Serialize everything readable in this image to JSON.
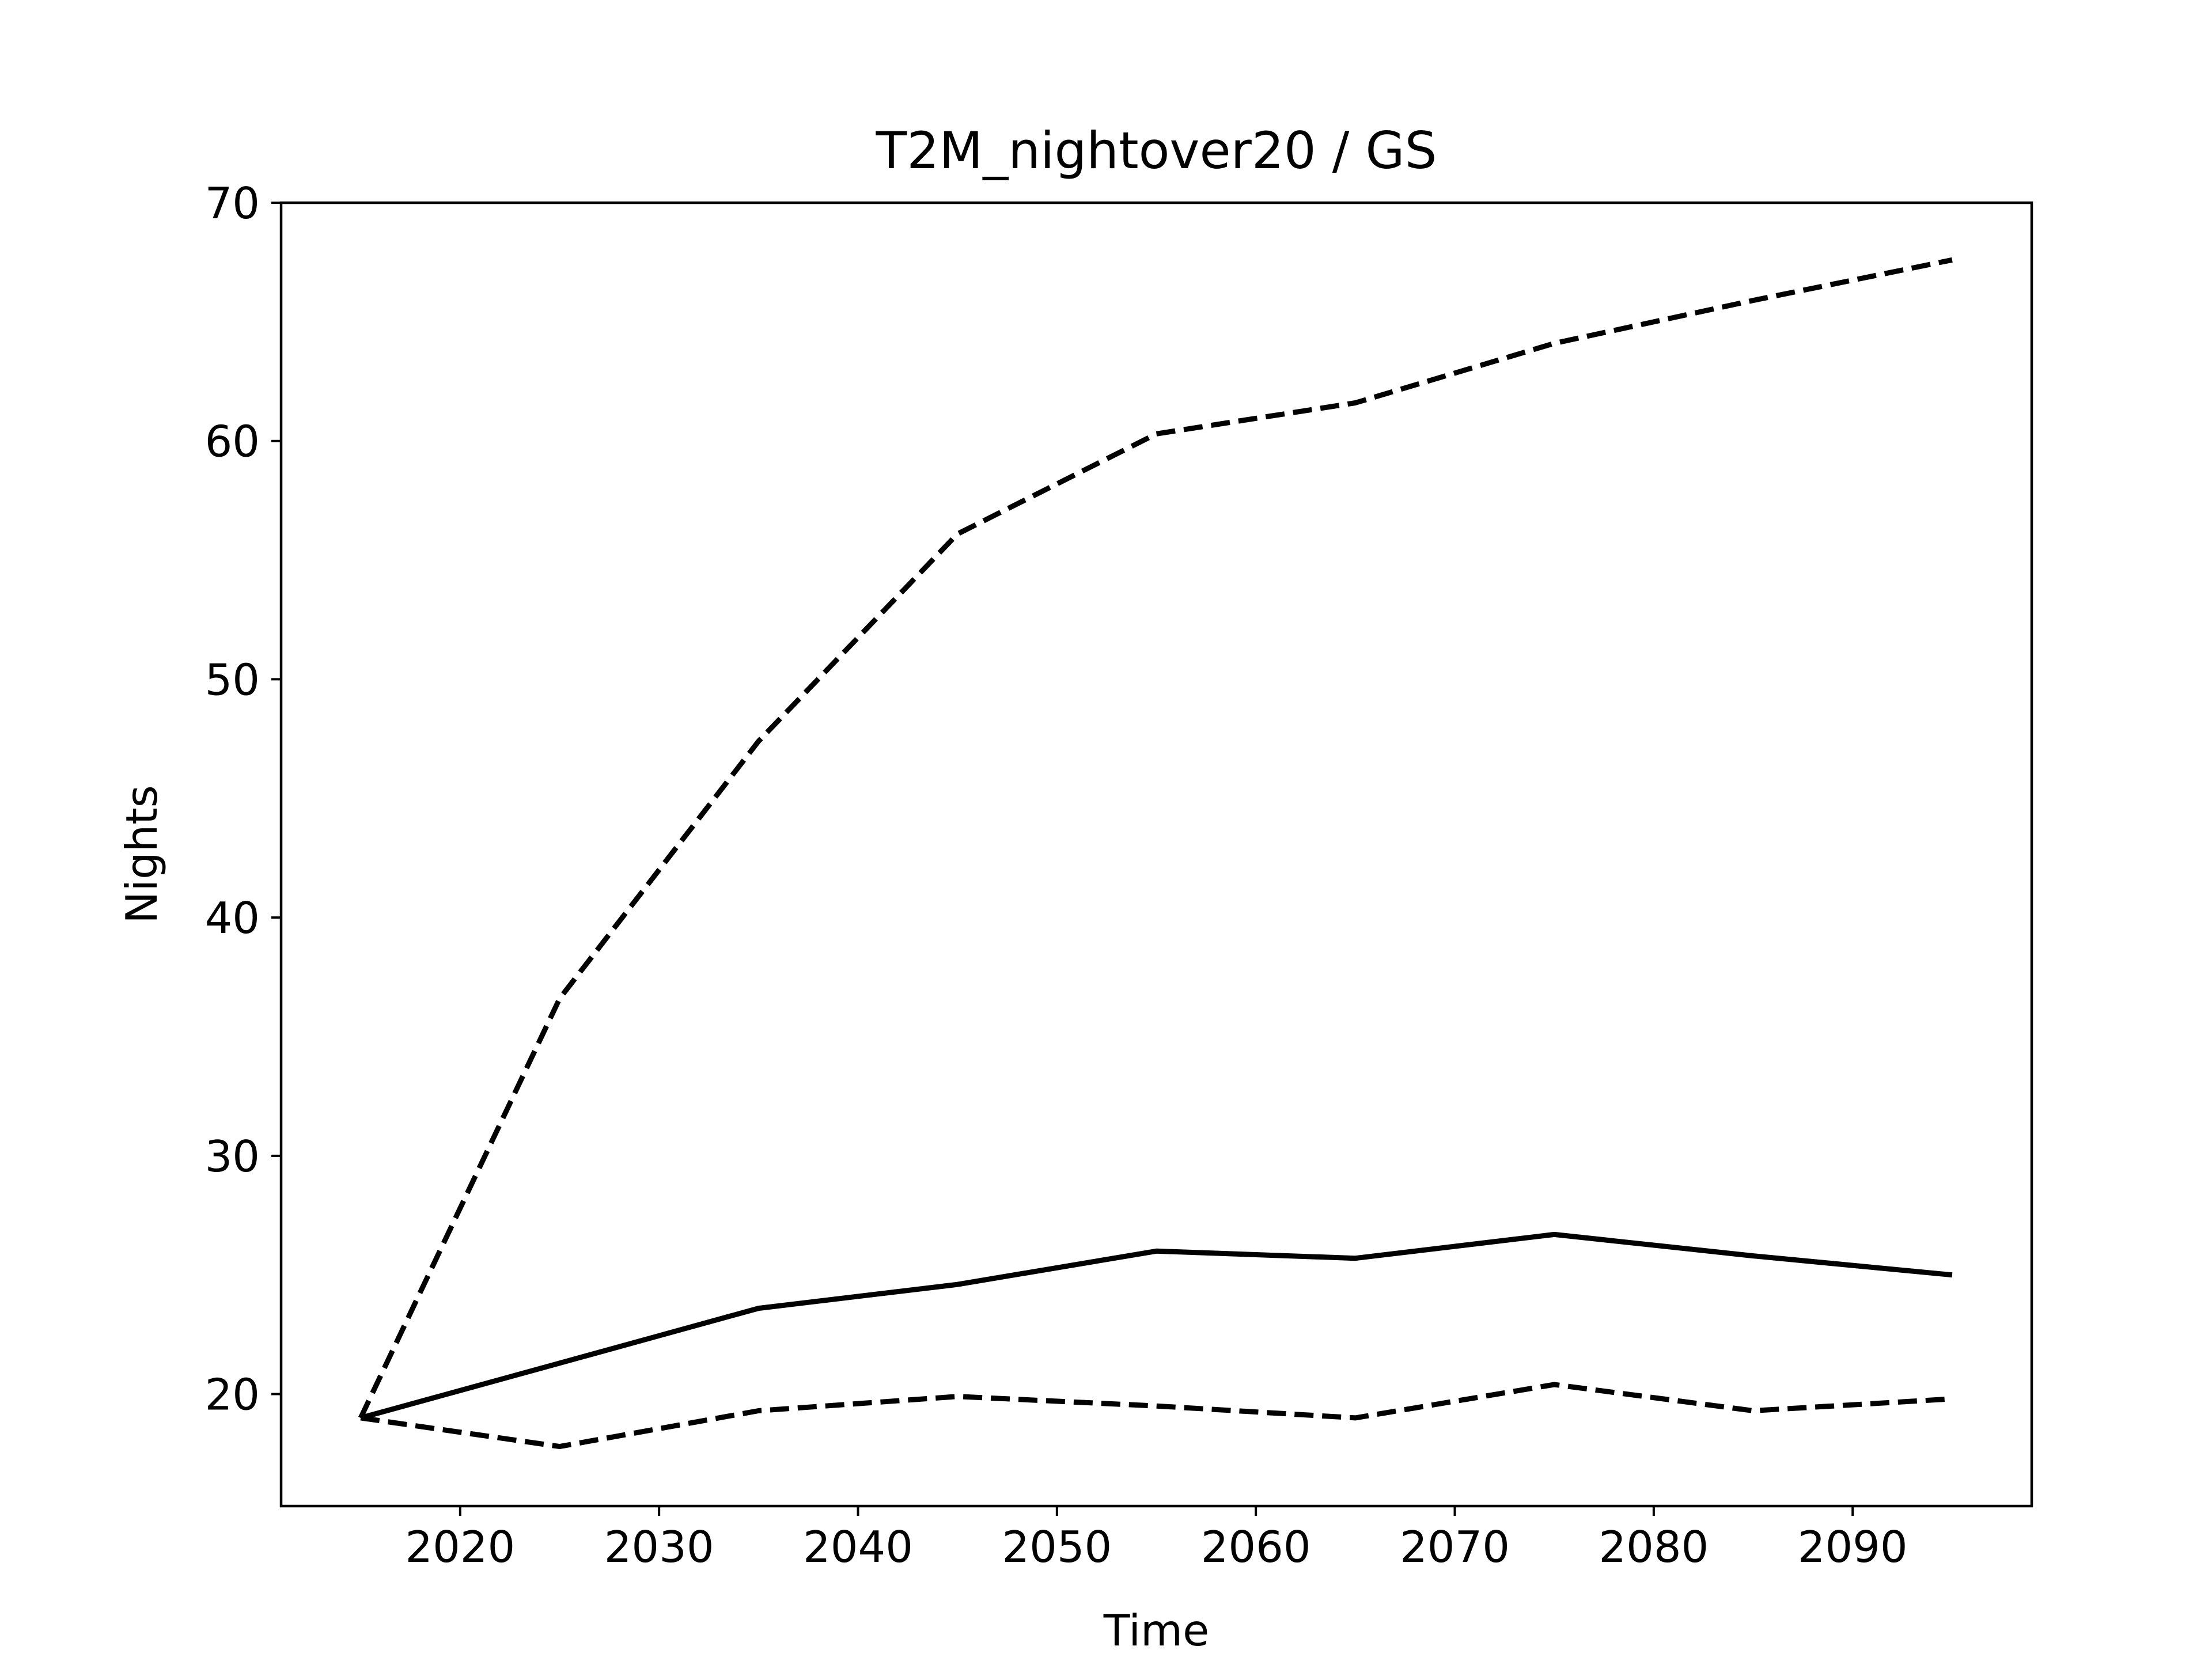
{
  "chart_data": {
    "type": "line",
    "title": "T2M_nightover20 / GS",
    "xlabel": "Time",
    "ylabel": "Nights",
    "x": [
      2015,
      2025,
      2035,
      2045,
      2055,
      2065,
      2075,
      2085,
      2095
    ],
    "xlim": [
      2011,
      2099
    ],
    "ylim": [
      15.3,
      70
    ],
    "xticks": [
      2020,
      2030,
      2040,
      2050,
      2060,
      2070,
      2080,
      2090
    ],
    "yticks": [
      20,
      30,
      40,
      50,
      60,
      70
    ],
    "grid": false,
    "legend": "none",
    "line_color": "#000000",
    "series": [
      {
        "style": "solid",
        "values": [
          19.0,
          21.3,
          23.6,
          24.6,
          26.0,
          25.7,
          26.7,
          25.8,
          25.0
        ]
      },
      {
        "style": "dashed",
        "values": [
          19.0,
          36.6,
          47.4,
          56.1,
          60.3,
          61.6,
          64.1,
          65.9,
          67.6
        ]
      },
      {
        "style": "dashed",
        "values": [
          19.0,
          17.8,
          19.3,
          19.9,
          19.5,
          19.0,
          20.4,
          19.3,
          19.8
        ]
      }
    ]
  }
}
